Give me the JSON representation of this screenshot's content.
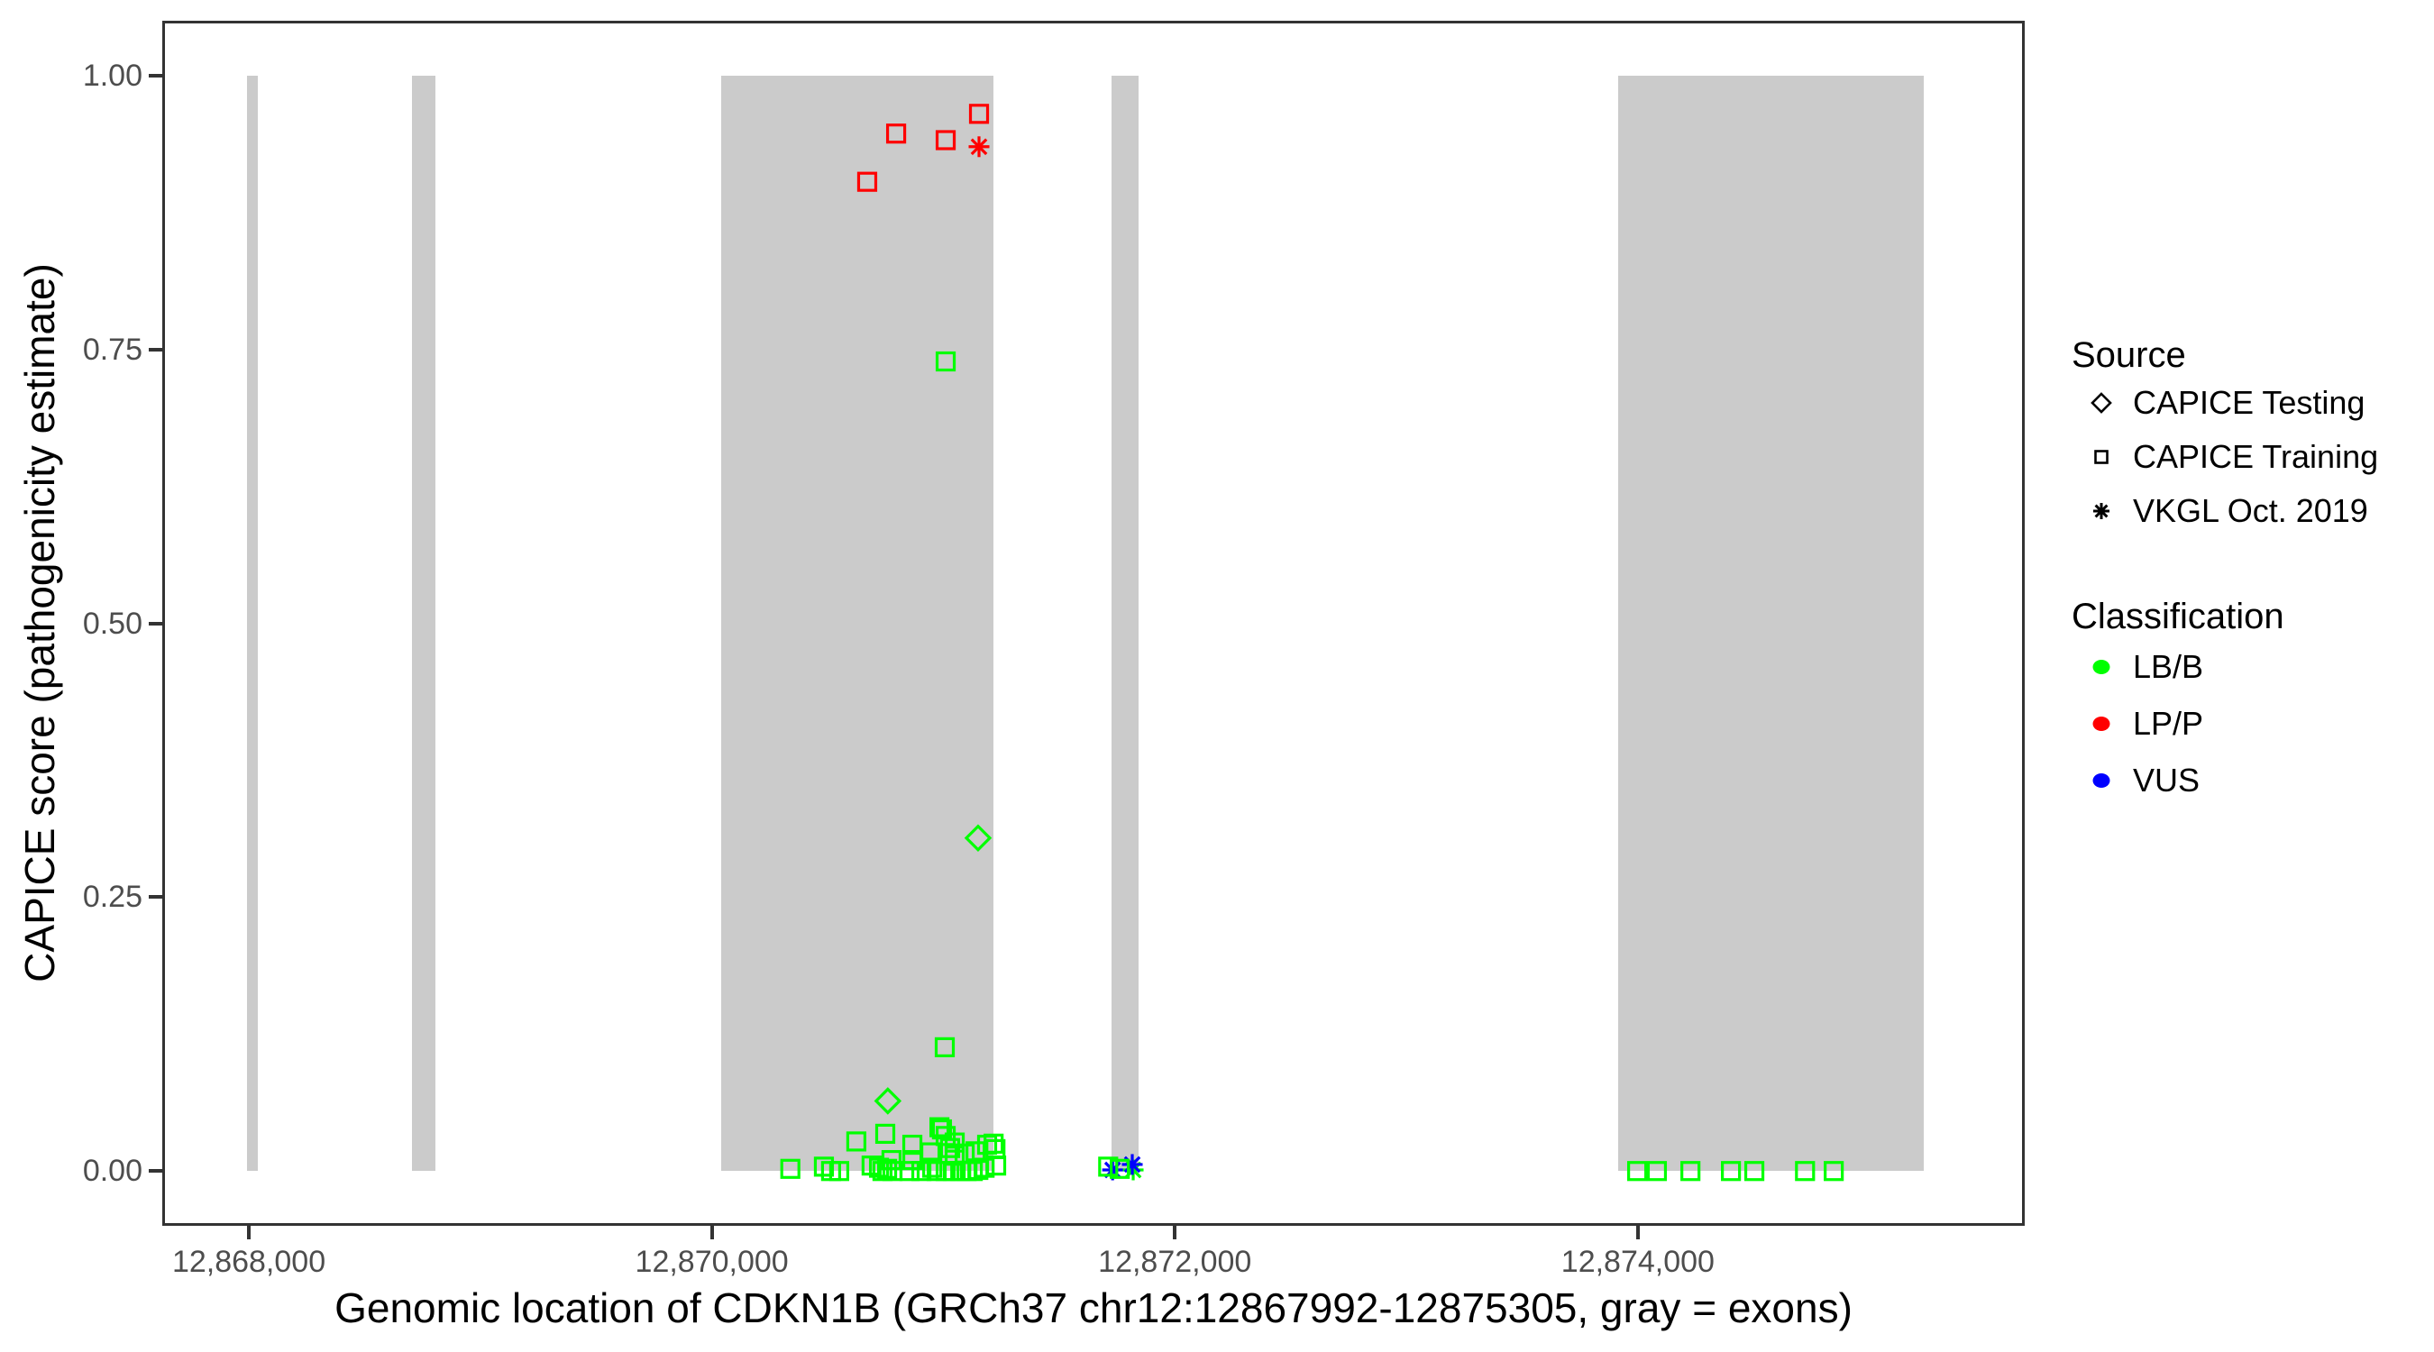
{
  "figure_title": "",
  "axes": {
    "x_title": "Genomic location of CDKN1B (GRCh37 chr12:12867992-12875305, gray = exons)",
    "y_title": "CAPICE score (pathogenicity estimate)"
  },
  "legend": {
    "source": {
      "title": "Source",
      "items": [
        {
          "label": "CAPICE Testing",
          "shape": "diamond"
        },
        {
          "label": "CAPICE Training",
          "shape": "square"
        },
        {
          "label": "VKGL Oct. 2019",
          "shape": "asterisk"
        }
      ]
    },
    "classification": {
      "title": "Classification",
      "items": [
        {
          "label": "LB/B",
          "color": "#00ff00"
        },
        {
          "label": "LP/P",
          "color": "#ff0000"
        },
        {
          "label": "VUS",
          "color": "#0000ff"
        }
      ]
    }
  },
  "colors": {
    "benign_green": "#00ff00",
    "pathogenic_red": "#ff0000",
    "vus_blue": "#0000ff",
    "exon_gray": "#cbcbcb",
    "axis_line": "#333333",
    "tick_text": "#4d4d4d"
  },
  "chart_data": {
    "type": "scatter",
    "title": "",
    "xlabel": "Genomic location of CDKN1B (GRCh37 chr12:12867992-12875305, gray = exons)",
    "ylabel": "CAPICE score (pathogenicity estimate)",
    "xlim": [
      12867626,
      12875671
    ],
    "ylim": [
      -0.05,
      1.05
    ],
    "grid": false,
    "legend_position": "right",
    "x_ticks": [
      {
        "value": 12868000,
        "label": "12,868,000"
      },
      {
        "value": 12870000,
        "label": "12,870,000"
      },
      {
        "value": 12872000,
        "label": "12,872,000"
      },
      {
        "value": 12874000,
        "label": "12,874,000"
      }
    ],
    "y_ticks": [
      {
        "value": 0.0,
        "label": "0.00"
      },
      {
        "value": 0.25,
        "label": "0.25"
      },
      {
        "value": 0.5,
        "label": "0.50"
      },
      {
        "value": 0.75,
        "label": "0.75"
      },
      {
        "value": 1.0,
        "label": "1.00"
      }
    ],
    "exon_gray_bands": [
      {
        "start": 12867992,
        "end": 12868039
      },
      {
        "start": 12868706,
        "end": 12868807
      },
      {
        "start": 12870039,
        "end": 12871217
      },
      {
        "start": 12871727,
        "end": 12871844
      },
      {
        "start": 12873915,
        "end": 12875233
      }
    ],
    "series": [
      {
        "source": "CAPICE Training",
        "classification": "LP/P",
        "shape": "square",
        "color": "#ff0000",
        "points": [
          [
            12870671,
            0.903
          ],
          [
            12870796,
            0.947
          ],
          [
            12871010,
            0.941
          ],
          [
            12871154,
            0.965
          ]
        ]
      },
      {
        "source": "VKGL Oct. 2019",
        "classification": "LP/P",
        "shape": "asterisk",
        "color": "#ff0000",
        "points": [
          [
            12871154,
            0.935
          ]
        ]
      },
      {
        "source": "CAPICE Testing",
        "classification": "LB/B",
        "shape": "diamond",
        "color": "#00ff00",
        "points": [
          [
            12870760,
            0.064
          ],
          [
            12871150,
            0.304
          ]
        ]
      },
      {
        "source": "VKGL Oct. 2019",
        "classification": "LB/B",
        "shape": "asterisk",
        "color": "#00ff00",
        "points": [
          [
            12871820,
            0.001
          ]
        ]
      },
      {
        "source": "VKGL Oct. 2019",
        "classification": "VUS",
        "shape": "asterisk",
        "color": "#0000ff",
        "points": [
          [
            12871731,
            0.001
          ],
          [
            12871816,
            0.006
          ]
        ]
      },
      {
        "source": "CAPICE Training",
        "classification": "LB/B",
        "shape": "square",
        "color": "#00ff00",
        "points": [
          [
            12870339,
            0.002
          ],
          [
            12870484,
            0.004
          ],
          [
            12870515,
            0.0
          ],
          [
            12870550,
            0.0
          ],
          [
            12870624,
            0.027
          ],
          [
            12870690,
            0.005
          ],
          [
            12870722,
            0.003
          ],
          [
            12870737,
            0.0
          ],
          [
            12870749,
            0.034
          ],
          [
            12870757,
            0.002
          ],
          [
            12870776,
            0.01
          ],
          [
            12870780,
            0.0
          ],
          [
            12870854,
            0.0
          ],
          [
            12870866,
            0.024
          ],
          [
            12870866,
            0.01
          ],
          [
            12870905,
            0.0
          ],
          [
            12870944,
            0.017
          ],
          [
            12870952,
            0.003
          ],
          [
            12870971,
            0.0
          ],
          [
            12870983,
            0.04
          ],
          [
            12870994,
            0.038
          ],
          [
            12871006,
            0.113
          ],
          [
            12871010,
            0.739
          ],
          [
            12871010,
            0.032
          ],
          [
            12871010,
            0.0
          ],
          [
            12871029,
            0.021
          ],
          [
            12871041,
            0.0
          ],
          [
            12871049,
            0.014
          ],
          [
            12871049,
            0.026
          ],
          [
            12871073,
            0.0
          ],
          [
            12871092,
            0.016
          ],
          [
            12871100,
            0.0
          ],
          [
            12871127,
            0.0
          ],
          [
            12871139,
            0.018
          ],
          [
            12871151,
            0.001
          ],
          [
            12871178,
            0.003
          ],
          [
            12871189,
            0.024
          ],
          [
            12871217,
            0.025
          ],
          [
            12871225,
            0.02
          ],
          [
            12871228,
            0.005
          ],
          [
            12871712,
            0.004
          ],
          [
            12871762,
            0.002
          ],
          [
            12873997,
            0.0
          ],
          [
            12874082,
            0.0
          ],
          [
            12874227,
            0.0
          ],
          [
            12874402,
            0.0
          ],
          [
            12874503,
            0.0
          ],
          [
            12874722,
            0.0
          ],
          [
            12874846,
            0.0
          ]
        ]
      }
    ]
  }
}
